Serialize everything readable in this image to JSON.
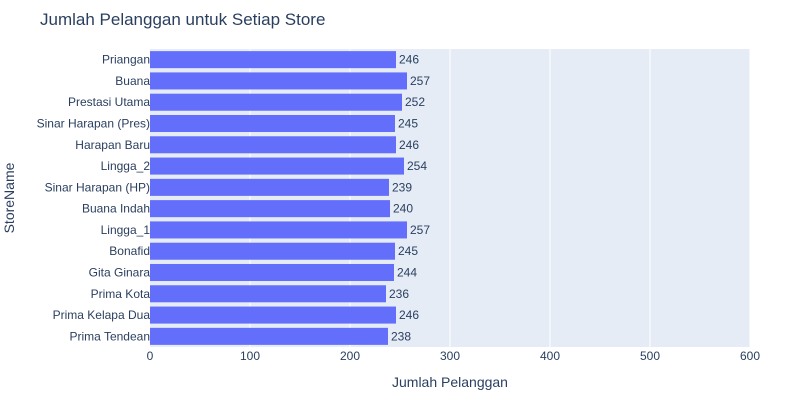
{
  "chart_data": {
    "type": "bar",
    "orientation": "horizontal",
    "title": "Jumlah Pelanggan untuk Setiap Store",
    "xlabel": "Jumlah Pelanggan",
    "ylabel": "StoreName",
    "xlim": [
      0,
      600
    ],
    "xticks": [
      0,
      100,
      200,
      300,
      400,
      500,
      600
    ],
    "grid": true,
    "bar_color": "#636efa",
    "plot_bg_color": "#e5ecf6",
    "text_color": "#2a3f5f",
    "categories": [
      "Priangan",
      "Buana",
      "Prestasi Utama",
      "Sinar Harapan (Pres)",
      "Harapan Baru",
      "Lingga_2",
      "Sinar Harapan (HP)",
      "Buana Indah",
      "Lingga_1",
      "Bonafid",
      "Gita Ginara",
      "Prima Kota",
      "Prima Kelapa Dua",
      "Prima Tendean"
    ],
    "values": [
      246,
      257,
      252,
      245,
      246,
      254,
      239,
      240,
      257,
      245,
      244,
      236,
      246,
      238
    ]
  }
}
